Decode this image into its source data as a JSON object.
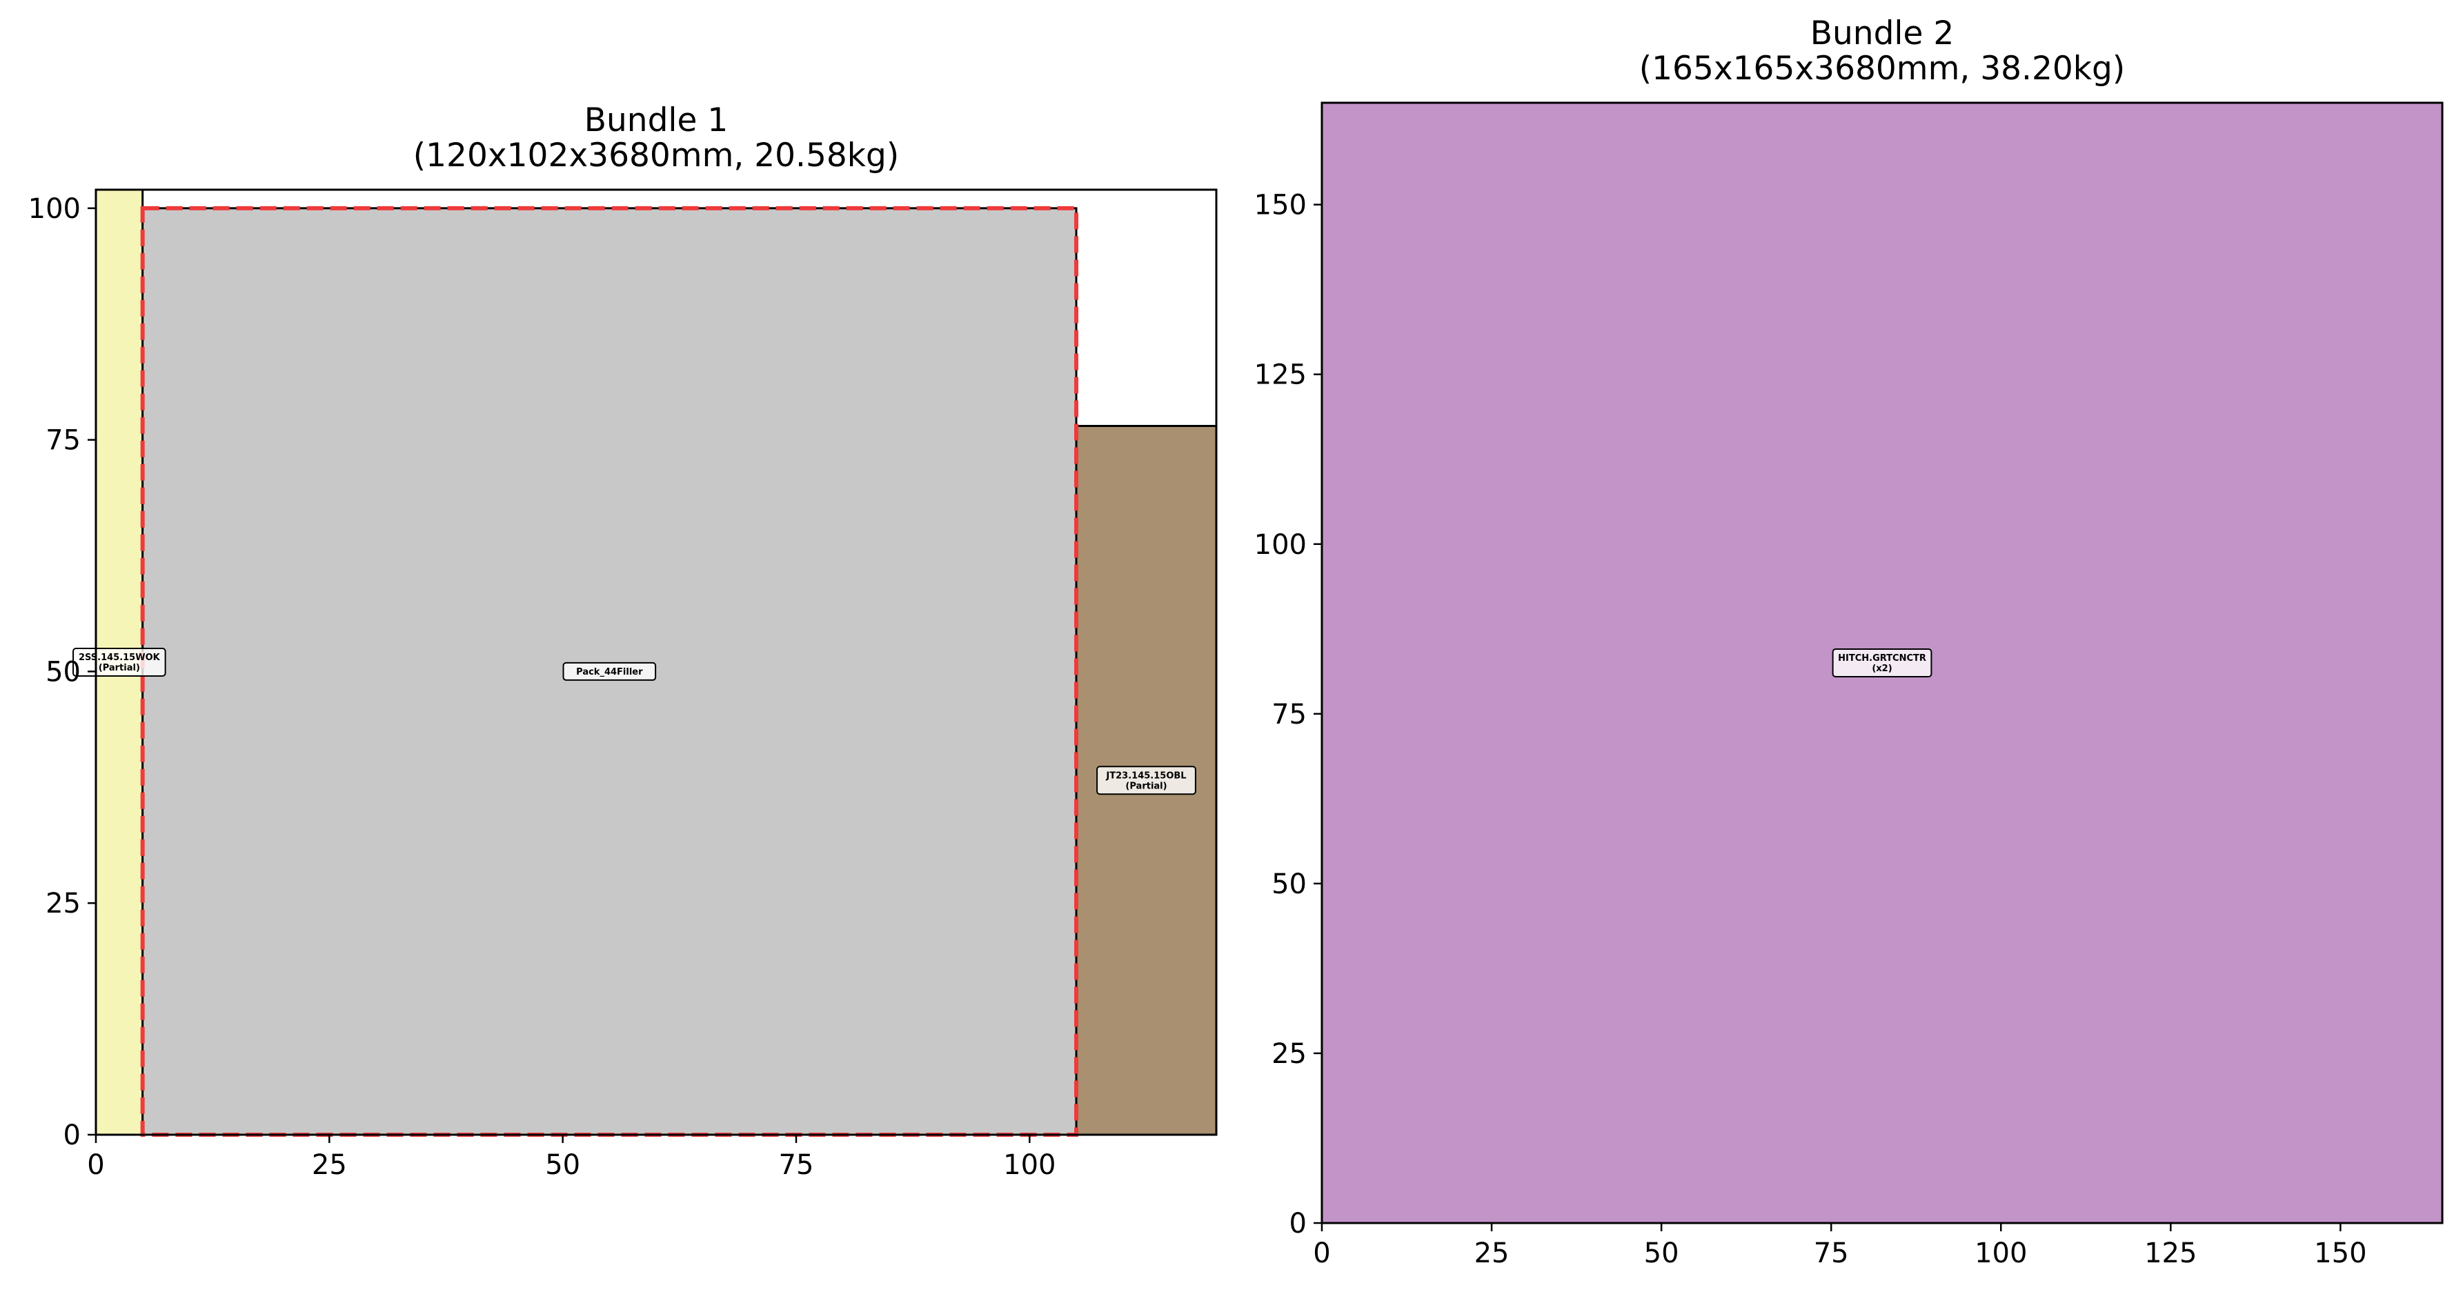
{
  "chart_data": [
    {
      "type": "packing-layout",
      "title": "Bundle 1",
      "subtitle": "(120x102x3680mm, 20.58kg)",
      "xlim": [
        0,
        120
      ],
      "ylim": [
        0,
        102
      ],
      "xticks": [
        0,
        25,
        50,
        75,
        100
      ],
      "yticks": [
        0,
        25,
        50,
        75,
        100
      ],
      "grid": false,
      "rectangles": [
        {
          "label": "2SS.145.15WOK",
          "note": "(Partial)",
          "x": 0,
          "y": 0,
          "w": 5,
          "h": 102,
          "color": "#f5f5b8"
        },
        {
          "label": "Pack_44Filler",
          "note": "",
          "x": 5,
          "y": 0,
          "w": 100,
          "h": 100,
          "color": "#c8c8c8"
        },
        {
          "label": "JT23.145.15OBL",
          "note": "(Partial)",
          "x": 105,
          "y": 0,
          "w": 15,
          "h": 76.5,
          "color": "#a89070"
        }
      ],
      "dashed_outline": {
        "x": 5,
        "y": 0,
        "w": 100,
        "h": 100,
        "color": "#ee3b3b"
      }
    },
    {
      "type": "packing-layout",
      "title": "Bundle 2",
      "subtitle": "(165x165x3680mm, 38.20kg)",
      "xlim": [
        0,
        165
      ],
      "ylim": [
        0,
        165
      ],
      "xticks": [
        0,
        25,
        50,
        75,
        100,
        125,
        150
      ],
      "yticks": [
        0,
        25,
        50,
        75,
        100,
        125,
        150
      ],
      "grid": false,
      "rectangles": [
        {
          "label": "HITCH.GRTCNCTR",
          "note": "(x2)",
          "x": 0,
          "y": 0,
          "w": 165,
          "h": 165,
          "color": "#c294c8"
        }
      ]
    }
  ]
}
